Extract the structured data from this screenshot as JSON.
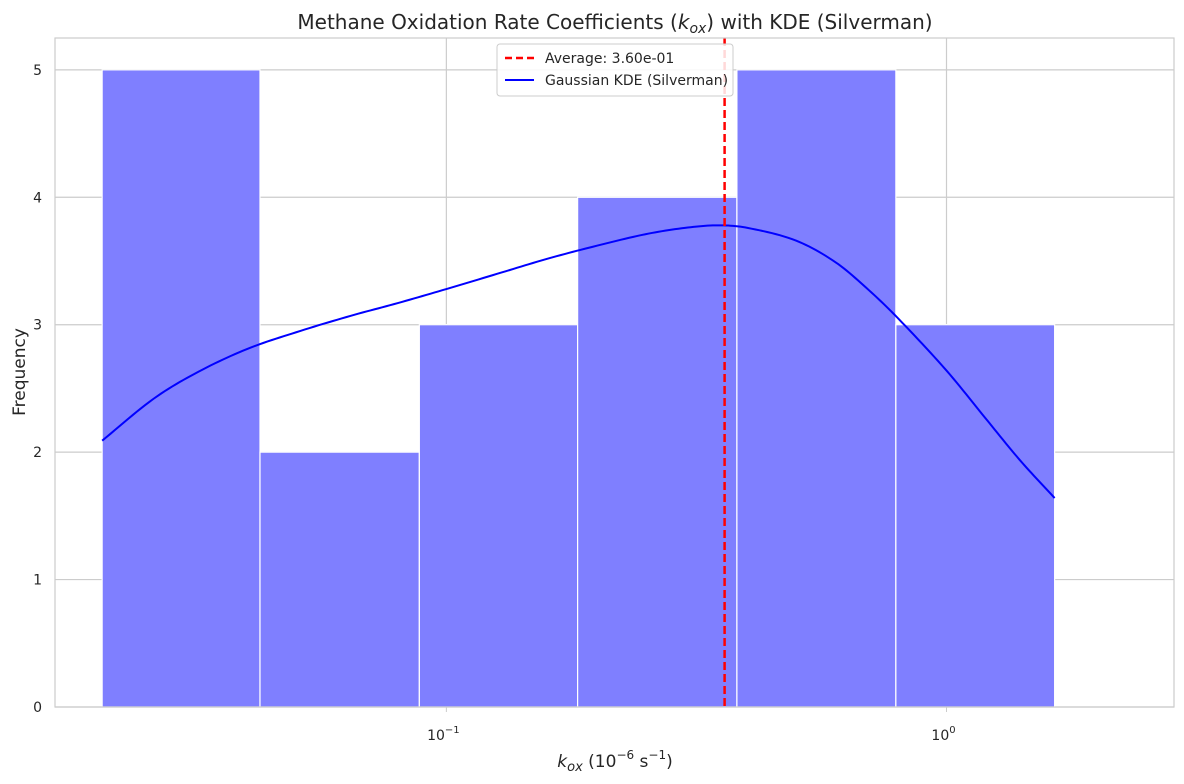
{
  "chart_data": {
    "type": "histogram",
    "title": "Methane Oxidation Rate Coefficients (k_ox) with KDE (Silverman)",
    "xlabel": "k_ox (10^-6 s^-1)",
    "ylabel": "Frequency",
    "x_scale": "log",
    "xlim": [
      0.0165,
      2.85
    ],
    "ylim": [
      0,
      5.25
    ],
    "x_ticks": [
      {
        "value": 0.1,
        "base": "10",
        "exp": "−1"
      },
      {
        "value": 1,
        "base": "10",
        "exp": "0"
      }
    ],
    "y_ticks": [
      0,
      1,
      2,
      3,
      4,
      5
    ],
    "grid": true,
    "bins": [
      {
        "x0": 0.0205,
        "x1": 0.0424,
        "count": 5
      },
      {
        "x0": 0.0424,
        "x1": 0.0883,
        "count": 2
      },
      {
        "x0": 0.0883,
        "x1": 0.183,
        "count": 3
      },
      {
        "x0": 0.183,
        "x1": 0.381,
        "count": 4
      },
      {
        "x0": 0.381,
        "x1": 0.792,
        "count": 5
      },
      {
        "x0": 0.792,
        "x1": 1.645,
        "count": 3
      }
    ],
    "series": [
      {
        "name": "Average: 3.60e-01",
        "kind": "vline",
        "value": 0.36,
        "color": "#ff0000",
        "style": "dashed"
      },
      {
        "name": "Gaussian KDE (Silverman)",
        "kind": "line",
        "color": "#0000ff",
        "x": [
          0.0205,
          0.026,
          0.0319,
          0.04,
          0.05,
          0.0644,
          0.08,
          0.1,
          0.129,
          0.16,
          0.2,
          0.25,
          0.3,
          0.35,
          0.4,
          0.5,
          0.6,
          0.7,
          0.8,
          1.0,
          1.2,
          1.4,
          1.645
        ],
        "y": [
          2.09,
          2.42,
          2.63,
          2.81,
          2.94,
          3.07,
          3.17,
          3.28,
          3.41,
          3.52,
          3.62,
          3.71,
          3.76,
          3.78,
          3.76,
          3.66,
          3.49,
          3.27,
          3.05,
          2.64,
          2.26,
          1.94,
          1.64
        ]
      }
    ],
    "bar_color": "#7f7fff",
    "legend_position": "top-center"
  }
}
